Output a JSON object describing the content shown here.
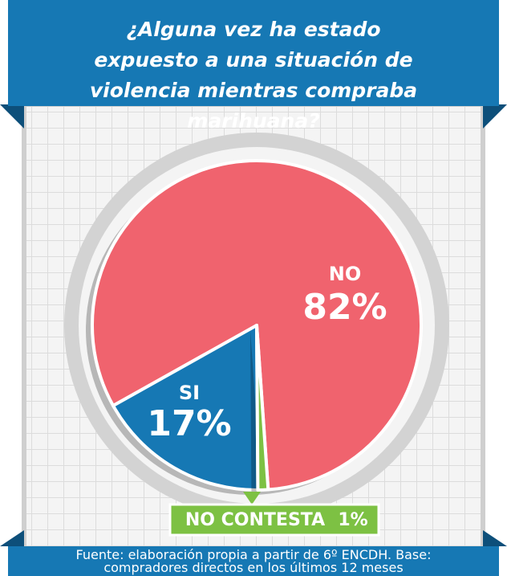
{
  "chart_data": {
    "type": "pie",
    "title": "¿Alguna vez ha estado expuesto a una situación de violencia mientras compraba marihuana?",
    "categories": [
      "NO",
      "SI",
      "NO CONTESTA"
    ],
    "values": [
      82,
      17,
      1
    ],
    "value_labels": [
      "82%",
      "17%",
      "1%"
    ],
    "colors": [
      "#f0636e",
      "#1678b4",
      "#7dc143"
    ],
    "source": "Fuente: elaboración propia a partir de 6º ENCDH. Base: compradores directos en los últimos 12 meses"
  }
}
